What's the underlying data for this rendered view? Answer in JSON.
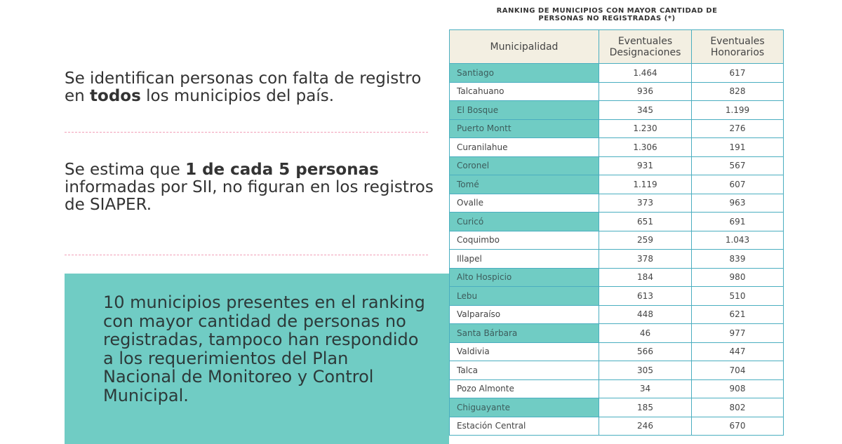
{
  "title": "RANKING DE MUNICIPIOS CON MAYOR CANTIDAD DE PERSONAS NO REGISTRADAS (*)",
  "paragraphs": [
    [
      "Se identifican personas con falta de registro en ",
      "todos",
      " los municipios del país."
    ],
    [
      "Se estima que ",
      "1 de cada 5 personas",
      " informadas por SII, no figuran en los registros de SIAPER."
    ]
  ],
  "callout": "10 municipios presentes en el ranking con mayor cantidad de personas no registradas, tampoco han respondido a los requerimientos del Plan Nacional de Monitoreo y Control Municipal.",
  "table": {
    "header": [
      "Municipalidad",
      "Eventuales Designaciones",
      "Eventuales Honorarios"
    ],
    "rows": [
      {
        "cells": [
          "Santiago",
          "1.464",
          "617"
        ],
        "highlighted": true
      },
      {
        "cells": [
          "Talcahuano",
          "936",
          "828"
        ],
        "highlighted": false
      },
      {
        "cells": [
          "El Bosque",
          "345",
          "1.199"
        ],
        "highlighted": true
      },
      {
        "cells": [
          "Puerto Montt",
          "1.230",
          "276"
        ],
        "highlighted": true
      },
      {
        "cells": [
          "Curanilahue",
          "1.306",
          "191"
        ],
        "highlighted": false
      },
      {
        "cells": [
          "Coronel",
          "931",
          "567"
        ],
        "highlighted": true
      },
      {
        "cells": [
          "Tomé",
          "1.119",
          "607"
        ],
        "highlighted": true
      },
      {
        "cells": [
          "Ovalle",
          "373",
          "963"
        ],
        "highlighted": false
      },
      {
        "cells": [
          "Curicó",
          "651",
          "691"
        ],
        "highlighted": true
      },
      {
        "cells": [
          "Coquimbo",
          "259",
          "1.043"
        ],
        "highlighted": false
      },
      {
        "cells": [
          "Illapel",
          "378",
          "839"
        ],
        "highlighted": false
      },
      {
        "cells": [
          "Alto Hospicio",
          "184",
          "980"
        ],
        "highlighted": true
      },
      {
        "cells": [
          "Lebu",
          "613",
          "510"
        ],
        "highlighted": true
      },
      {
        "cells": [
          "Valparaíso",
          "448",
          "621"
        ],
        "highlighted": false
      },
      {
        "cells": [
          "Santa Bárbara",
          "46",
          "977"
        ],
        "highlighted": true
      },
      {
        "cells": [
          "Valdivia",
          "566",
          "447"
        ],
        "highlighted": false
      },
      {
        "cells": [
          "Talca",
          "305",
          "704"
        ],
        "highlighted": false
      },
      {
        "cells": [
          "Pozo Almonte",
          "34",
          "908"
        ],
        "highlighted": false
      },
      {
        "cells": [
          "Chiguayante",
          "185",
          "802"
        ],
        "highlighted": true
      },
      {
        "cells": [
          "Estación Central",
          "246",
          "670"
        ],
        "highlighted": false
      }
    ]
  }
}
